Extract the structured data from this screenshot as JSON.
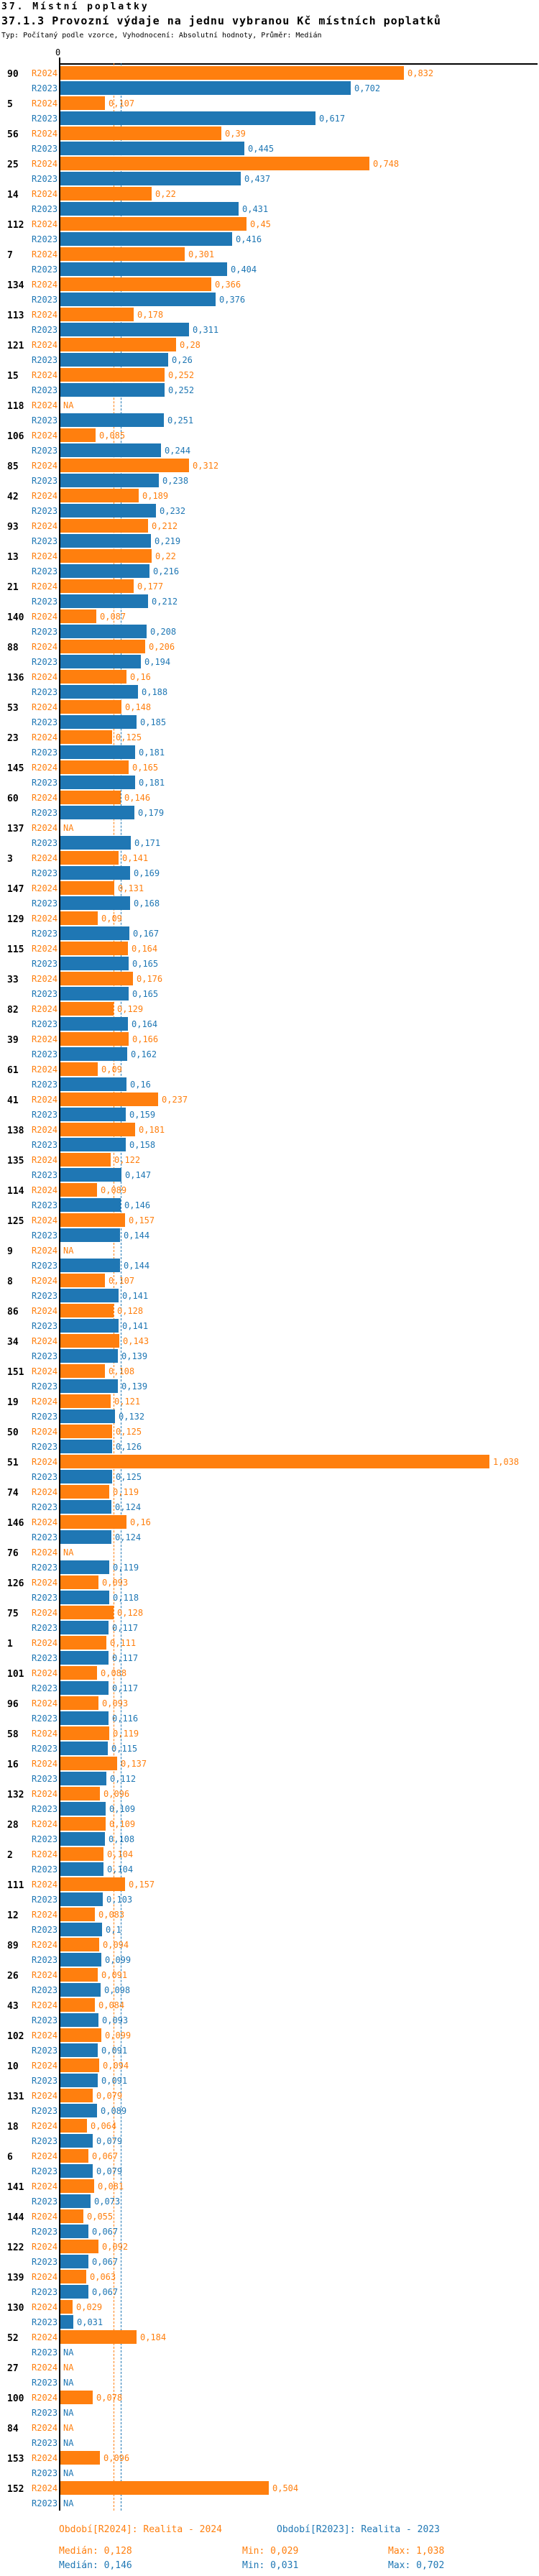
{
  "header": {
    "title": "37. Místní poplatky",
    "subtitle": "37.1.3 Provozní výdaje na jednu vybranou Kč místních poplatků",
    "meta": "Typ: Počítaný podle vzorce, Vyhodnocení: Absolutní hodnoty, Průměr: Medián"
  },
  "colors": {
    "r2024": "#ff7f0e",
    "r2023": "#1f77b4",
    "axis": "#000000"
  },
  "axis": {
    "zero_label": "0"
  },
  "na_label": "NA",
  "chart_data": {
    "type": "bar",
    "orientation": "horizontal",
    "series_labels": {
      "r2024": "R2024",
      "r2023": "R2023"
    },
    "medians": {
      "r2024": 0.128,
      "r2023": 0.146
    },
    "xlim": [
      0,
      1.15
    ],
    "grid": false,
    "groups": [
      {
        "id": "90",
        "r2024": 0.832,
        "r2023": 0.702
      },
      {
        "id": "5",
        "r2024": 0.107,
        "r2023": 0.617
      },
      {
        "id": "56",
        "r2024": 0.39,
        "r2023": 0.445
      },
      {
        "id": "25",
        "r2024": 0.748,
        "r2023": 0.437
      },
      {
        "id": "14",
        "r2024": 0.22,
        "r2023": 0.431
      },
      {
        "id": "112",
        "r2024": 0.45,
        "r2023": 0.416
      },
      {
        "id": "7",
        "r2024": 0.301,
        "r2023": 0.404
      },
      {
        "id": "134",
        "r2024": 0.366,
        "r2023": 0.376
      },
      {
        "id": "113",
        "r2024": 0.178,
        "r2023": 0.311
      },
      {
        "id": "121",
        "r2024": 0.28,
        "r2023": 0.26
      },
      {
        "id": "15",
        "r2024": 0.252,
        "r2023": 0.252
      },
      {
        "id": "118",
        "r2024": null,
        "r2023": 0.251
      },
      {
        "id": "106",
        "r2024": 0.085,
        "r2023": 0.244
      },
      {
        "id": "85",
        "r2024": 0.312,
        "r2023": 0.238
      },
      {
        "id": "42",
        "r2024": 0.189,
        "r2023": 0.232
      },
      {
        "id": "93",
        "r2024": 0.212,
        "r2023": 0.219
      },
      {
        "id": "13",
        "r2024": 0.22,
        "r2023": 0.216
      },
      {
        "id": "21",
        "r2024": 0.177,
        "r2023": 0.212
      },
      {
        "id": "140",
        "r2024": 0.087,
        "r2023": 0.208
      },
      {
        "id": "88",
        "r2024": 0.206,
        "r2023": 0.194
      },
      {
        "id": "136",
        "r2024": 0.16,
        "r2023": 0.188
      },
      {
        "id": "53",
        "r2024": 0.148,
        "r2023": 0.185
      },
      {
        "id": "23",
        "r2024": 0.125,
        "r2023": 0.181
      },
      {
        "id": "145",
        "r2024": 0.165,
        "r2023": 0.181
      },
      {
        "id": "60",
        "r2024": 0.146,
        "r2023": 0.179
      },
      {
        "id": "137",
        "r2024": null,
        "r2023": 0.171
      },
      {
        "id": "3",
        "r2024": 0.141,
        "r2023": 0.169
      },
      {
        "id": "147",
        "r2024": 0.131,
        "r2023": 0.168
      },
      {
        "id": "129",
        "r2024": 0.09,
        "r2023": 0.167
      },
      {
        "id": "115",
        "r2024": 0.164,
        "r2023": 0.165
      },
      {
        "id": "33",
        "r2024": 0.176,
        "r2023": 0.165
      },
      {
        "id": "82",
        "r2024": 0.129,
        "r2023": 0.164
      },
      {
        "id": "39",
        "r2024": 0.166,
        "r2023": 0.162
      },
      {
        "id": "61",
        "r2024": 0.09,
        "r2023": 0.16
      },
      {
        "id": "41",
        "r2024": 0.237,
        "r2023": 0.159
      },
      {
        "id": "138",
        "r2024": 0.181,
        "r2023": 0.158
      },
      {
        "id": "135",
        "r2024": 0.122,
        "r2023": 0.147
      },
      {
        "id": "114",
        "r2024": 0.089,
        "r2023": 0.146
      },
      {
        "id": "125",
        "r2024": 0.157,
        "r2023": 0.144
      },
      {
        "id": "9",
        "r2024": null,
        "r2023": 0.144
      },
      {
        "id": "8",
        "r2024": 0.107,
        "r2023": 0.141
      },
      {
        "id": "86",
        "r2024": 0.128,
        "r2023": 0.141
      },
      {
        "id": "34",
        "r2024": 0.143,
        "r2023": 0.139
      },
      {
        "id": "151",
        "r2024": 0.108,
        "r2023": 0.139
      },
      {
        "id": "19",
        "r2024": 0.121,
        "r2023": 0.132
      },
      {
        "id": "50",
        "r2024": 0.125,
        "r2023": 0.126
      },
      {
        "id": "51",
        "r2024": 1.038,
        "r2023": 0.125
      },
      {
        "id": "74",
        "r2024": 0.119,
        "r2023": 0.124
      },
      {
        "id": "146",
        "r2024": 0.16,
        "r2023": 0.124
      },
      {
        "id": "76",
        "r2024": null,
        "r2023": 0.119
      },
      {
        "id": "126",
        "r2024": 0.093,
        "r2023": 0.118
      },
      {
        "id": "75",
        "r2024": 0.128,
        "r2023": 0.117
      },
      {
        "id": "1",
        "r2024": 0.111,
        "r2023": 0.117
      },
      {
        "id": "101",
        "r2024": 0.088,
        "r2023": 0.117
      },
      {
        "id": "96",
        "r2024": 0.093,
        "r2023": 0.116
      },
      {
        "id": "58",
        "r2024": 0.119,
        "r2023": 0.115
      },
      {
        "id": "16",
        "r2024": 0.137,
        "r2023": 0.112
      },
      {
        "id": "132",
        "r2024": 0.096,
        "r2023": 0.109
      },
      {
        "id": "28",
        "r2024": 0.109,
        "r2023": 0.108
      },
      {
        "id": "2",
        "r2024": 0.104,
        "r2023": 0.104
      },
      {
        "id": "111",
        "r2024": 0.157,
        "r2023": 0.103
      },
      {
        "id": "12",
        "r2024": 0.083,
        "r2023": 0.1
      },
      {
        "id": "89",
        "r2024": 0.094,
        "r2023": 0.099
      },
      {
        "id": "26",
        "r2024": 0.091,
        "r2023": 0.098
      },
      {
        "id": "43",
        "r2024": 0.084,
        "r2023": 0.093
      },
      {
        "id": "102",
        "r2024": 0.099,
        "r2023": 0.091
      },
      {
        "id": "10",
        "r2024": 0.094,
        "r2023": 0.091
      },
      {
        "id": "131",
        "r2024": 0.079,
        "r2023": 0.089
      },
      {
        "id": "18",
        "r2024": 0.064,
        "r2023": 0.079
      },
      {
        "id": "6",
        "r2024": 0.067,
        "r2023": 0.079
      },
      {
        "id": "141",
        "r2024": 0.081,
        "r2023": 0.073
      },
      {
        "id": "144",
        "r2024": 0.055,
        "r2023": 0.067
      },
      {
        "id": "122",
        "r2024": 0.092,
        "r2023": 0.067
      },
      {
        "id": "139",
        "r2024": 0.063,
        "r2023": 0.067
      },
      {
        "id": "130",
        "r2024": 0.029,
        "r2023": 0.031
      },
      {
        "id": "52",
        "r2024": 0.184,
        "r2023": null
      },
      {
        "id": "27",
        "r2024": null,
        "r2023": null
      },
      {
        "id": "100",
        "r2024": 0.078,
        "r2023": null
      },
      {
        "id": "84",
        "r2024": null,
        "r2023": null
      },
      {
        "id": "153",
        "r2024": 0.096,
        "r2023": null
      },
      {
        "id": "152",
        "r2024": 0.504,
        "r2023": null
      }
    ]
  },
  "legend": {
    "period_2024": "Období[R2024]: Realita - 2024",
    "period_2023": "Období[R2023]: Realita - 2023",
    "stats_2024": {
      "median": "Medián: 0,128",
      "min": "Min: 0,029",
      "max": "Max: 1,038"
    },
    "stats_2023": {
      "median": "Medián: 0,146",
      "min": "Min: 0,031",
      "max": "Max: 0,702"
    }
  }
}
